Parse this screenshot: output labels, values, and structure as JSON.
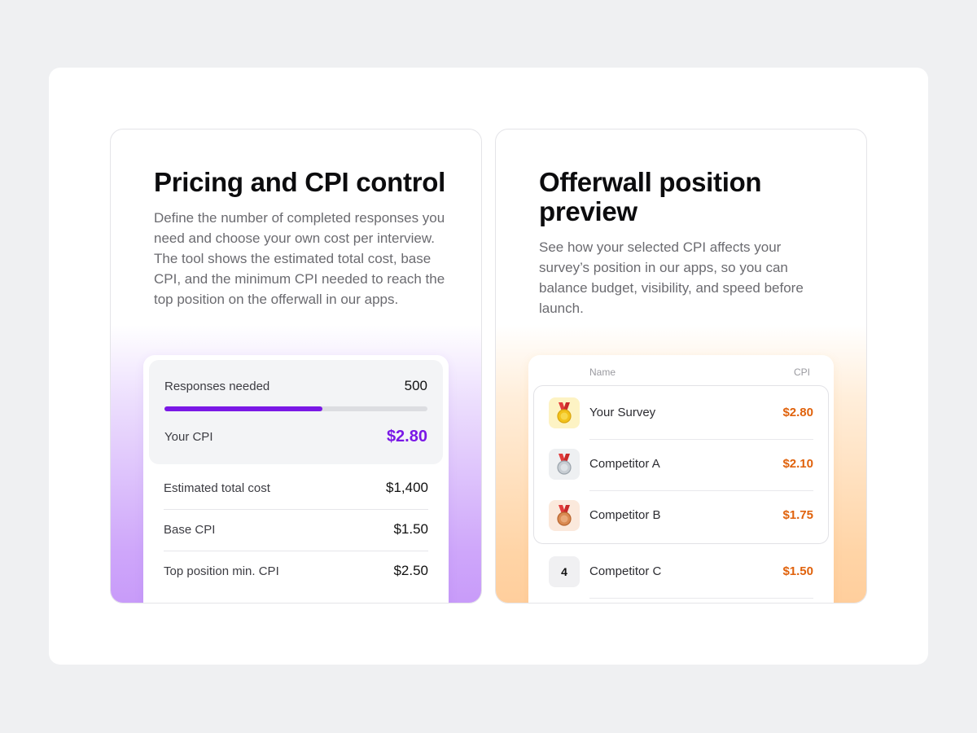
{
  "left_card": {
    "title": "Pricing and CPI control",
    "description": "Define the number of completed responses you need and choose your own cost per interview. The tool shows the estimated total cost, base CPI, and the minimum CPI needed to reach the top position on the offerwall in our apps.",
    "responses_label": "Responses needed",
    "responses_value": "500",
    "responses_fill_fraction": 0.6,
    "cpi_label": "Your CPI",
    "cpi_value": "$2.80",
    "rows": [
      {
        "label": "Estimated total cost",
        "value": "$1,400"
      },
      {
        "label": "Base CPI",
        "value": "$1.50"
      },
      {
        "label": "Top position min. CPI",
        "value": "$2.50"
      }
    ],
    "accent_color": "#7a18e6"
  },
  "right_card": {
    "title": "Offerwall position preview",
    "description": "See how your selected CPI affects your survey’s position in our apps, so you can balance budget, visibility, and speed before launch.",
    "col_name": "Name",
    "col_cpi": "CPI",
    "ranking": [
      {
        "rank": "1",
        "icon": "gold-medal-icon",
        "name": "Your Survey",
        "cpi": "$2.80"
      },
      {
        "rank": "2",
        "icon": "silver-medal-icon",
        "name": "Competitor A",
        "cpi": "$2.10"
      },
      {
        "rank": "3",
        "icon": "bronze-medal-icon",
        "name": "Competitor B",
        "cpi": "$1.75"
      },
      {
        "rank": "4",
        "icon": "",
        "name": "Competitor C",
        "cpi": "$1.50"
      }
    ],
    "accent_color": "#e0620c"
  }
}
